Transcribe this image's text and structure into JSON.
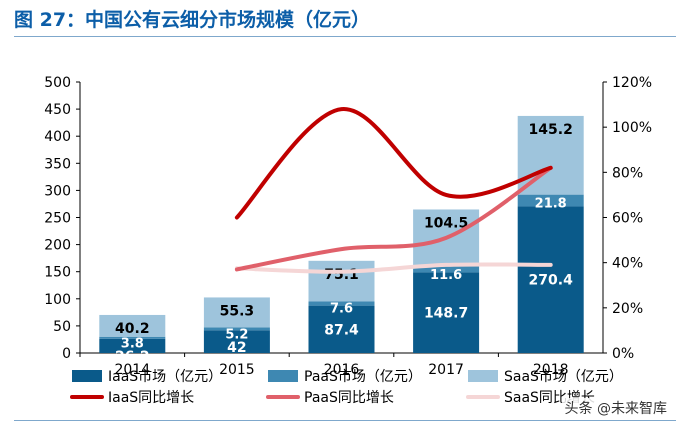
{
  "title": "图 27：中国公有云细分市场规模（亿元）",
  "brand": "头条 @未来智库",
  "colors": {
    "title": "#0c5ea8",
    "iaas_bar": "#0a5a8a",
    "paas_bar": "#3e88b2",
    "saas_bar": "#9ec4dc",
    "iaas_line": "#c00000",
    "paas_line": "#e0606a",
    "saas_line": "#f5d6d6"
  },
  "chart_data": {
    "type": "bar+line",
    "categories": [
      "2014",
      "2015",
      "2016",
      "2017",
      "2018"
    ],
    "y_left": {
      "min": 0,
      "max": 500,
      "ticks": [
        "0",
        "50",
        "100",
        "150",
        "200",
        "250",
        "300",
        "350",
        "400",
        "450",
        "500"
      ]
    },
    "y_right": {
      "min": 0,
      "max": 120,
      "ticks": [
        "0%",
        "20%",
        "40%",
        "60%",
        "80%",
        "100%",
        "120%"
      ]
    },
    "bar_series": [
      {
        "name": "IaaS市场（亿元）",
        "values": [
          26.2,
          42,
          87.4,
          148.7,
          270.4
        ],
        "labels": [
          "26.2",
          "42",
          "87.4",
          "148.7",
          "270.4"
        ]
      },
      {
        "name": "PaaS市场（亿元）",
        "values": [
          3.8,
          5.2,
          7.6,
          11.6,
          21.8
        ],
        "labels": [
          "3.8",
          "5.2",
          "7.6",
          "11.6",
          "21.8"
        ]
      },
      {
        "name": "SaaS市场（亿元）",
        "values": [
          40.2,
          55.3,
          75.1,
          104.5,
          145.2
        ],
        "labels": [
          "40.2",
          "55.3",
          "75.1",
          "104.5",
          "145.2"
        ]
      }
    ],
    "line_series": [
      {
        "name": "IaaS同比增长",
        "values": [
          null,
          60,
          108,
          70,
          82
        ]
      },
      {
        "name": "PaaS同比增长",
        "values": [
          null,
          37,
          46,
          51,
          82
        ]
      },
      {
        "name": "SaaS同比增长",
        "values": [
          null,
          37.5,
          36,
          39,
          39
        ]
      }
    ],
    "legend_position": "bottom",
    "grid": false
  }
}
